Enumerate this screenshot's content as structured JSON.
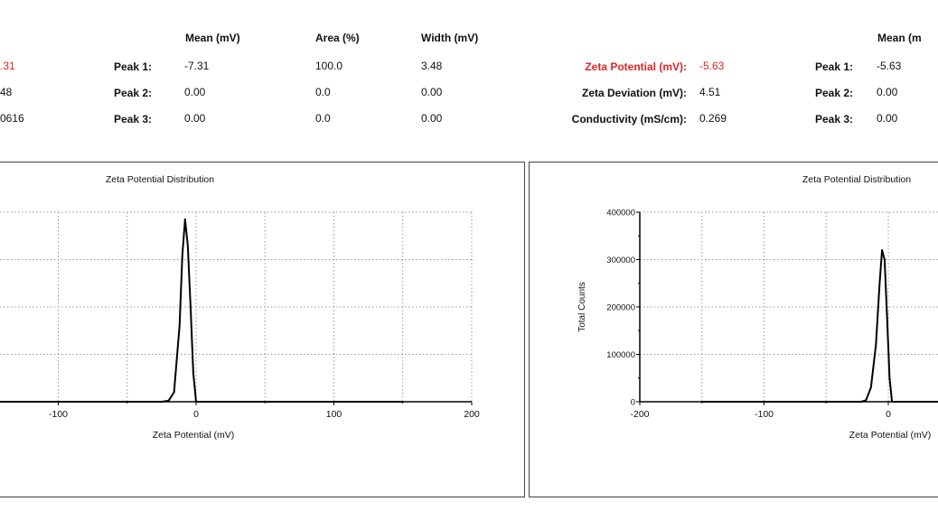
{
  "colors": {
    "highlight": "#e02424",
    "line": "#000000",
    "grid": "#9a9a9a",
    "frame": "#444444"
  },
  "left_panel": {
    "stats_values": [
      ".31",
      "48",
      "0616"
    ],
    "peaks_header": {
      "mean": "Mean (mV)",
      "area": "Area (%)",
      "width": "Width (mV)"
    },
    "peaks": [
      {
        "label": "Peak 1:",
        "mean": "-7.31",
        "area": "100.0",
        "width": "3.48"
      },
      {
        "label": "Peak 2:",
        "mean": "0.00",
        "area": "0.0",
        "width": "0.00"
      },
      {
        "label": "Peak 3:",
        "mean": "0.00",
        "area": "0.0",
        "width": "0.00"
      }
    ]
  },
  "right_panel": {
    "stats": [
      {
        "label": "Zeta Potential (mV):",
        "value": "-5.63",
        "highlight": true
      },
      {
        "label": "Zeta Deviation (mV):",
        "value": "4.51",
        "highlight": false
      },
      {
        "label": "Conductivity (mS/cm):",
        "value": "0.269",
        "highlight": false
      }
    ],
    "peaks_header": {
      "mean": "Mean (m"
    },
    "peaks": [
      {
        "label": "Peak 1:",
        "mean": "-5.63"
      },
      {
        "label": "Peak 2:",
        "mean": "0.00"
      },
      {
        "label": "Peak 3:",
        "mean": "0.00"
      }
    ]
  },
  "chart_data": [
    {
      "type": "line",
      "title": "Zeta Potential Distribution",
      "xlabel": "Zeta Potential (mV)",
      "ylabel": "",
      "xlim": [
        -200,
        200
      ],
      "ylim": [
        0,
        400000
      ],
      "xticks": [
        -100,
        0,
        100,
        200
      ],
      "grid": true,
      "series": [
        {
          "x": [
            -150,
            -25,
            -20,
            -16,
            -12,
            -10,
            -8,
            -6,
            -4,
            -2,
            0,
            150
          ],
          "y": [
            0,
            0,
            2000,
            20000,
            160000,
            310000,
            385000,
            330000,
            200000,
            60000,
            0,
            0
          ]
        }
      ]
    },
    {
      "type": "line",
      "title": "Zeta Potential Distribution",
      "xlabel": "Zeta Potential (mV)",
      "ylabel": "Total Counts",
      "xlim": [
        -200,
        200
      ],
      "ylim": [
        0,
        400000
      ],
      "xticks": [
        -200,
        -100,
        0
      ],
      "yticks": [
        0,
        100000,
        200000,
        300000,
        400000
      ],
      "grid": true,
      "series": [
        {
          "x": [
            -150,
            -22,
            -18,
            -14,
            -10,
            -7,
            -5,
            -3,
            -1,
            1,
            3,
            150
          ],
          "y": [
            0,
            0,
            3000,
            30000,
            120000,
            250000,
            320000,
            300000,
            180000,
            50000,
            0,
            0
          ]
        }
      ]
    }
  ]
}
